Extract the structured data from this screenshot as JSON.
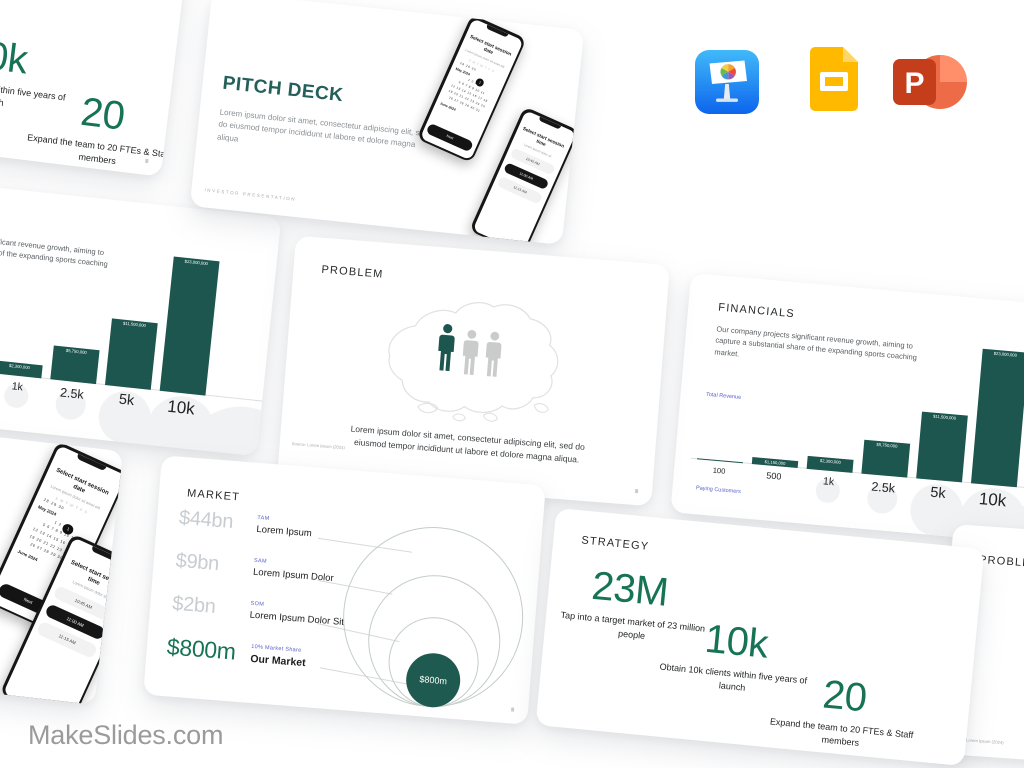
{
  "brand": {
    "site": "MakeSlides.com"
  },
  "apps": [
    "Keynote",
    "Google Slides",
    "PowerPoint"
  ],
  "colors": {
    "bar_teal": "#1D564E",
    "title_teal": "#24605A",
    "stat_green": "#177355",
    "label_purple": "#5B60C8",
    "value_gray": "#C8CDD2",
    "brand_gray": "#9B9B9B"
  },
  "phones": {
    "date_screen": {
      "title": "Select start session date",
      "subtitle": "Lorem ipsum dolor sit amet elit",
      "weekdays": "S M T W T F S",
      "leading_dates": "28 29 30",
      "month_current": "May 2024",
      "grid": "1 2 3 4\n5 6 7 8 9 10 11\n12 13 14 15 16 17 18\n19 20 21 22 23 24 25\n26 27 28 29 30 31",
      "selected_day": "1",
      "month_next": "June 2024",
      "cta": "Next"
    },
    "time_screen": {
      "title": "Select start session time",
      "subtitle": "Lorem ipsum dolor sit",
      "slots": [
        "10:45 AM",
        "11:00 AM",
        "11:15 AM"
      ]
    }
  },
  "slides": {
    "cover": {
      "title": "PITCH DECK",
      "body": "Lorem ipsum dolor sit amet, consectetur adipiscing elit, sed do eiusmod tempor incididunt ut labore et dolore magna aliqua",
      "footer": "INVESTOR  PRESENTATION"
    },
    "problem": {
      "title": "PROBLEM",
      "body": "Lorem ipsum dolor sit amet, consectetur adipiscing elit, sed do eiusmod tempor incididunt ut labore et dolore magna aliqua.",
      "source": "Source: Lorem Ipsum (2024)"
    },
    "financials": {
      "title": "FINANCIALS",
      "body": "Our company projects significant revenue growth, aiming to capture a substantial share of the expanding sports coaching market.",
      "y_axis_label": "Total Revenue",
      "x_axis_label": "Paying Customers",
      "categories": [
        "100",
        "500",
        "1k",
        "2.5k",
        "5k",
        "10k"
      ],
      "values": [
        230000,
        1150000,
        2300000,
        5750000,
        11500000,
        23000000
      ],
      "bar_labels": [
        "$230,000",
        "$1,150,000",
        "$2,300,000",
        "$5,750,000",
        "$11,500,000",
        "$23,000,000"
      ]
    },
    "market": {
      "title": "MARKET",
      "rows": [
        {
          "value": "$44bn",
          "tag": "TAM",
          "name": "Lorem Ipsum"
        },
        {
          "value": "$9bn",
          "tag": "SAM",
          "name": "Lorem Ipsum Dolor"
        },
        {
          "value": "$2bn",
          "tag": "SOM",
          "name": "Lorem Ipsum Dolor Sit"
        },
        {
          "value": "$800m",
          "tag": "10% Market Share",
          "name": "Our Market"
        }
      ],
      "bubble_label": "$800m"
    },
    "strategy": {
      "title": "STRATEGY",
      "stats": [
        {
          "value": "23M",
          "caption": "Tap into a target market of 23 million people"
        },
        {
          "value": "10k",
          "caption": "Obtain 10k clients within five years of launch"
        },
        {
          "value": "20",
          "caption": "Expand the team to 20 FTEs & Staff members"
        }
      ]
    }
  }
}
